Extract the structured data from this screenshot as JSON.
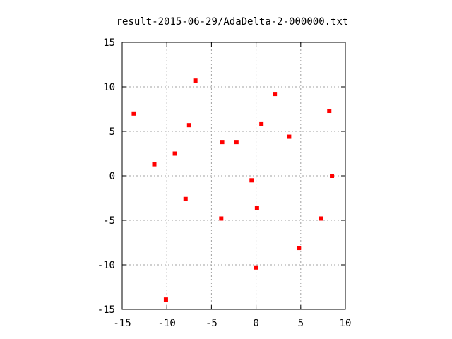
{
  "chart_data": {
    "type": "scatter",
    "title": "result-2015-06-29/AdaDelta-2-000000.txt",
    "xlabel": "",
    "ylabel": "",
    "xlim": [
      -15,
      10
    ],
    "ylim": [
      -15,
      15
    ],
    "xticks": [
      -15,
      -10,
      -5,
      0,
      5,
      10
    ],
    "yticks": [
      -15,
      -10,
      -5,
      0,
      5,
      10,
      15
    ],
    "grid": true,
    "legend": "none",
    "series": [
      {
        "color": "#ff0000",
        "marker": "square",
        "points": [
          {
            "x": -13.7,
            "y": 7.0
          },
          {
            "x": -6.8,
            "y": 10.7
          },
          {
            "x": -7.5,
            "y": 5.7
          },
          {
            "x": -3.8,
            "y": 3.8
          },
          {
            "x": -2.2,
            "y": 3.8
          },
          {
            "x": 0.6,
            "y": 5.8
          },
          {
            "x": 2.1,
            "y": 9.2
          },
          {
            "x": 3.7,
            "y": 4.4
          },
          {
            "x": 8.2,
            "y": 7.3
          },
          {
            "x": -11.4,
            "y": 1.3
          },
          {
            "x": -9.1,
            "y": 2.5
          },
          {
            "x": 8.5,
            "y": 0.0
          },
          {
            "x": -0.5,
            "y": -0.5
          },
          {
            "x": -7.9,
            "y": -2.6
          },
          {
            "x": 0.1,
            "y": -3.6
          },
          {
            "x": -3.9,
            "y": -4.8
          },
          {
            "x": 7.3,
            "y": -4.8
          },
          {
            "x": 4.8,
            "y": -8.1
          },
          {
            "x": 0.0,
            "y": -10.3
          },
          {
            "x": -10.1,
            "y": -13.9
          }
        ]
      }
    ]
  }
}
